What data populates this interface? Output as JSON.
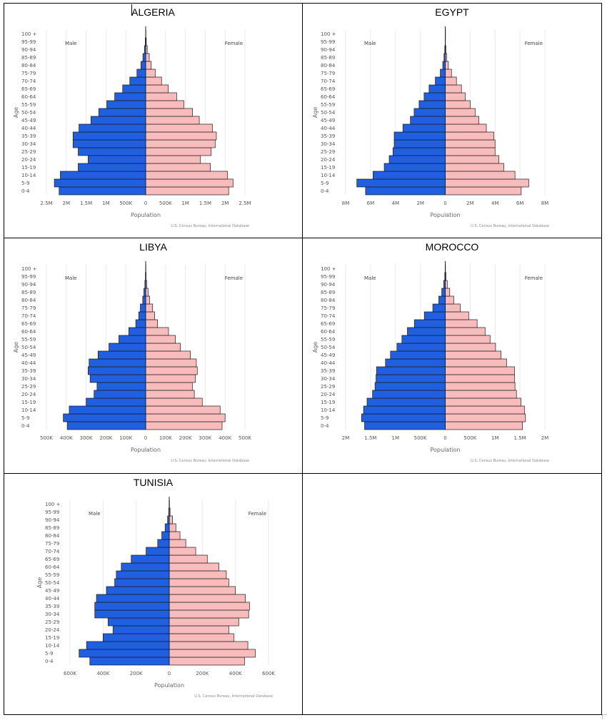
{
  "age_groups": [
    "0-4",
    "5-9",
    "10-14",
    "15-19",
    "20-24",
    "25-29",
    "30-34",
    "35-39",
    "40-44",
    "45-49",
    "50-54",
    "55-59",
    "60-64",
    "65-69",
    "70-74",
    "75-79",
    "80-84",
    "85-89",
    "90-94",
    "95-99",
    "100 +"
  ],
  "labels": {
    "male": "Male",
    "female": "Female",
    "age_axis": "Age",
    "x_axis": "Population",
    "source": "U.S. Census Bureau, International Database"
  },
  "colors": {
    "male": "#1f5fe0",
    "female": "#f9bcbc",
    "outline": "#1b1b1b"
  },
  "chart_data": [
    {
      "type": "bar",
      "title": "ALGERIA",
      "orientation": "horizontal-population-pyramid",
      "xlim": [
        -2500000,
        2500000
      ],
      "tick_values": [
        -2500000,
        -2000000,
        -1500000,
        -1000000,
        -500000,
        0,
        500000,
        1000000,
        1500000,
        2000000,
        2500000
      ],
      "tick_labels": [
        "2.5M",
        "2M",
        "1.5M",
        "1M",
        "500K",
        "0",
        "500K",
        "1M",
        "1.5M",
        "2M",
        "2.5M"
      ],
      "series": [
        {
          "name": "Male",
          "values": [
            2180000,
            2300000,
            2150000,
            1700000,
            1450000,
            1700000,
            1830000,
            1830000,
            1680000,
            1380000,
            1180000,
            980000,
            780000,
            580000,
            400000,
            220000,
            120000,
            70000,
            30000,
            10000,
            3000
          ]
        },
        {
          "name": "Female",
          "values": [
            2090000,
            2200000,
            2060000,
            1630000,
            1380000,
            1650000,
            1750000,
            1780000,
            1680000,
            1350000,
            1180000,
            960000,
            780000,
            570000,
            400000,
            240000,
            140000,
            90000,
            40000,
            15000,
            4000
          ]
        }
      ]
    },
    {
      "type": "bar",
      "title": "EGYPT",
      "orientation": "horizontal-population-pyramid",
      "xlim": [
        -8000000,
        8000000
      ],
      "tick_values": [
        -8000000,
        -6000000,
        -4000000,
        -2000000,
        0,
        2000000,
        4000000,
        6000000,
        8000000
      ],
      "tick_labels": [
        "8M",
        "6M",
        "4M",
        "2M",
        "0",
        "2M",
        "4M",
        "6M",
        "8M"
      ],
      "series": [
        {
          "name": "Male",
          "values": [
            6400000,
            7100000,
            5800000,
            4900000,
            4500000,
            4200000,
            4100000,
            4100000,
            3400000,
            2800000,
            2500000,
            2100000,
            1700000,
            1300000,
            800000,
            400000,
            200000,
            100000,
            40000,
            10000,
            3000
          ]
        },
        {
          "name": "Female",
          "values": [
            6100000,
            6700000,
            5600000,
            4700000,
            4300000,
            4000000,
            4000000,
            3900000,
            3300000,
            2700000,
            2400000,
            2000000,
            1600000,
            1300000,
            900000,
            500000,
            250000,
            120000,
            50000,
            15000,
            4000
          ]
        }
      ]
    },
    {
      "type": "bar",
      "title": "LIBYA",
      "orientation": "horizontal-population-pyramid",
      "xlim": [
        -500000,
        500000
      ],
      "tick_values": [
        -500000,
        -400000,
        -300000,
        -200000,
        -100000,
        0,
        100000,
        200000,
        300000,
        400000,
        500000
      ],
      "tick_labels": [
        "500K",
        "400K",
        "300K",
        "200K",
        "100K",
        "0",
        "100K",
        "200K",
        "300K",
        "400K",
        "500K"
      ],
      "series": [
        {
          "name": "Male",
          "values": [
            395000,
            415000,
            385000,
            300000,
            260000,
            245000,
            280000,
            290000,
            285000,
            240000,
            185000,
            135000,
            85000,
            50000,
            35000,
            27000,
            15000,
            9000,
            4000,
            1500,
            500
          ]
        },
        {
          "name": "Female",
          "values": [
            385000,
            400000,
            375000,
            285000,
            245000,
            235000,
            250000,
            260000,
            255000,
            225000,
            175000,
            150000,
            115000,
            60000,
            45000,
            35000,
            20000,
            12000,
            5000,
            2000,
            700
          ]
        }
      ]
    },
    {
      "type": "bar",
      "title": "MOROCCO",
      "orientation": "horizontal-population-pyramid",
      "xlim": [
        -2000000,
        2000000
      ],
      "tick_values": [
        -2000000,
        -1500000,
        -1000000,
        -500000,
        0,
        500000,
        1000000,
        1500000,
        2000000
      ],
      "tick_labels": [
        "2M",
        "1.5M",
        "1M",
        "500K",
        "0",
        "500K",
        "1M",
        "1.5M",
        "2M"
      ],
      "series": [
        {
          "name": "Male",
          "values": [
            1620000,
            1680000,
            1640000,
            1570000,
            1460000,
            1410000,
            1390000,
            1380000,
            1200000,
            1100000,
            970000,
            870000,
            760000,
            620000,
            420000,
            250000,
            130000,
            70000,
            30000,
            10000,
            3000
          ]
        },
        {
          "name": "Female",
          "values": [
            1550000,
            1610000,
            1590000,
            1520000,
            1430000,
            1400000,
            1390000,
            1390000,
            1230000,
            1120000,
            1010000,
            900000,
            800000,
            640000,
            470000,
            300000,
            170000,
            90000,
            40000,
            15000,
            5000
          ]
        }
      ]
    },
    {
      "type": "bar",
      "title": "TUNISIA",
      "orientation": "horizontal-population-pyramid",
      "xlim": [
        -600000,
        600000
      ],
      "tick_values": [
        -600000,
        -400000,
        -200000,
        0,
        200000,
        400000,
        600000
      ],
      "tick_labels": [
        "600K",
        "400K",
        "200K",
        "0",
        "200K",
        "400K",
        "600K"
      ],
      "series": [
        {
          "name": "Male",
          "values": [
            480000,
            545000,
            500000,
            400000,
            340000,
            370000,
            450000,
            450000,
            440000,
            380000,
            330000,
            320000,
            290000,
            230000,
            140000,
            70000,
            45000,
            25000,
            10000,
            3000,
            1000
          ]
        },
        {
          "name": "Female",
          "values": [
            455000,
            520000,
            475000,
            390000,
            360000,
            420000,
            480000,
            485000,
            460000,
            400000,
            360000,
            345000,
            300000,
            230000,
            160000,
            100000,
            65000,
            40000,
            20000,
            5000,
            1500
          ]
        }
      ]
    }
  ]
}
